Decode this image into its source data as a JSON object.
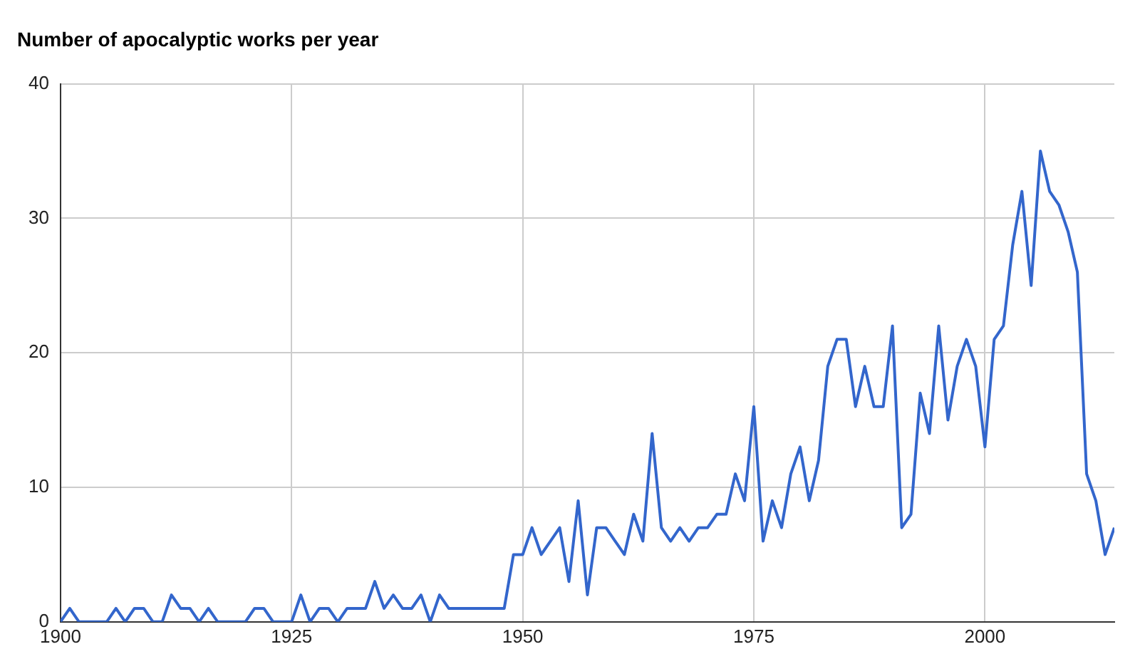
{
  "chart_data": {
    "type": "line",
    "title": "Number of apocalyptic works per year",
    "x": [
      1900,
      1901,
      1902,
      1903,
      1904,
      1905,
      1906,
      1907,
      1908,
      1909,
      1910,
      1911,
      1912,
      1913,
      1914,
      1915,
      1916,
      1917,
      1918,
      1919,
      1920,
      1921,
      1922,
      1923,
      1924,
      1925,
      1926,
      1927,
      1928,
      1929,
      1930,
      1931,
      1932,
      1933,
      1934,
      1935,
      1936,
      1937,
      1938,
      1939,
      1940,
      1941,
      1942,
      1943,
      1944,
      1945,
      1946,
      1947,
      1948,
      1949,
      1950,
      1951,
      1952,
      1953,
      1954,
      1955,
      1956,
      1957,
      1958,
      1959,
      1960,
      1961,
      1962,
      1963,
      1964,
      1965,
      1966,
      1967,
      1968,
      1969,
      1970,
      1971,
      1972,
      1973,
      1974,
      1975,
      1976,
      1977,
      1978,
      1979,
      1980,
      1981,
      1982,
      1983,
      1984,
      1985,
      1986,
      1987,
      1988,
      1989,
      1990,
      1991,
      1992,
      1993,
      1994,
      1995,
      1996,
      1997,
      1998,
      1999,
      2000,
      2001,
      2002,
      2003,
      2004,
      2005,
      2006,
      2007,
      2008,
      2009,
      2010,
      2011,
      2012,
      2013,
      2014
    ],
    "series": [
      {
        "color": "#3366cc",
        "values": [
          0,
          1,
          0,
          0,
          0,
          0,
          1,
          0,
          1,
          1,
          0,
          0,
          2,
          1,
          1,
          0,
          1,
          0,
          0,
          0,
          0,
          1,
          1,
          0,
          0,
          0,
          2,
          0,
          1,
          1,
          0,
          1,
          1,
          1,
          3,
          1,
          2,
          1,
          1,
          2,
          0,
          2,
          1,
          1,
          1,
          1,
          1,
          1,
          1,
          5,
          5,
          7,
          5,
          6,
          7,
          3,
          9,
          2,
          7,
          7,
          6,
          5,
          8,
          6,
          14,
          7,
          6,
          7,
          6,
          7,
          7,
          8,
          8,
          11,
          9,
          16,
          6,
          9,
          7,
          11,
          13,
          9,
          12,
          19,
          21,
          21,
          16,
          19,
          16,
          16,
          22,
          7,
          8,
          17,
          14,
          22,
          15,
          19,
          21,
          19,
          13,
          21,
          22,
          28,
          32,
          25,
          35,
          32,
          31,
          29,
          26,
          11,
          9,
          5,
          7
        ]
      }
    ],
    "xlim": [
      1900,
      2014
    ],
    "xticks": [
      1900,
      1925,
      1950,
      1975,
      2000
    ],
    "ylim": [
      0,
      40
    ],
    "yticks": [
      0,
      10,
      20,
      30,
      40
    ],
    "grid": true,
    "legend": false,
    "marker": "none",
    "line_style": "solid"
  }
}
